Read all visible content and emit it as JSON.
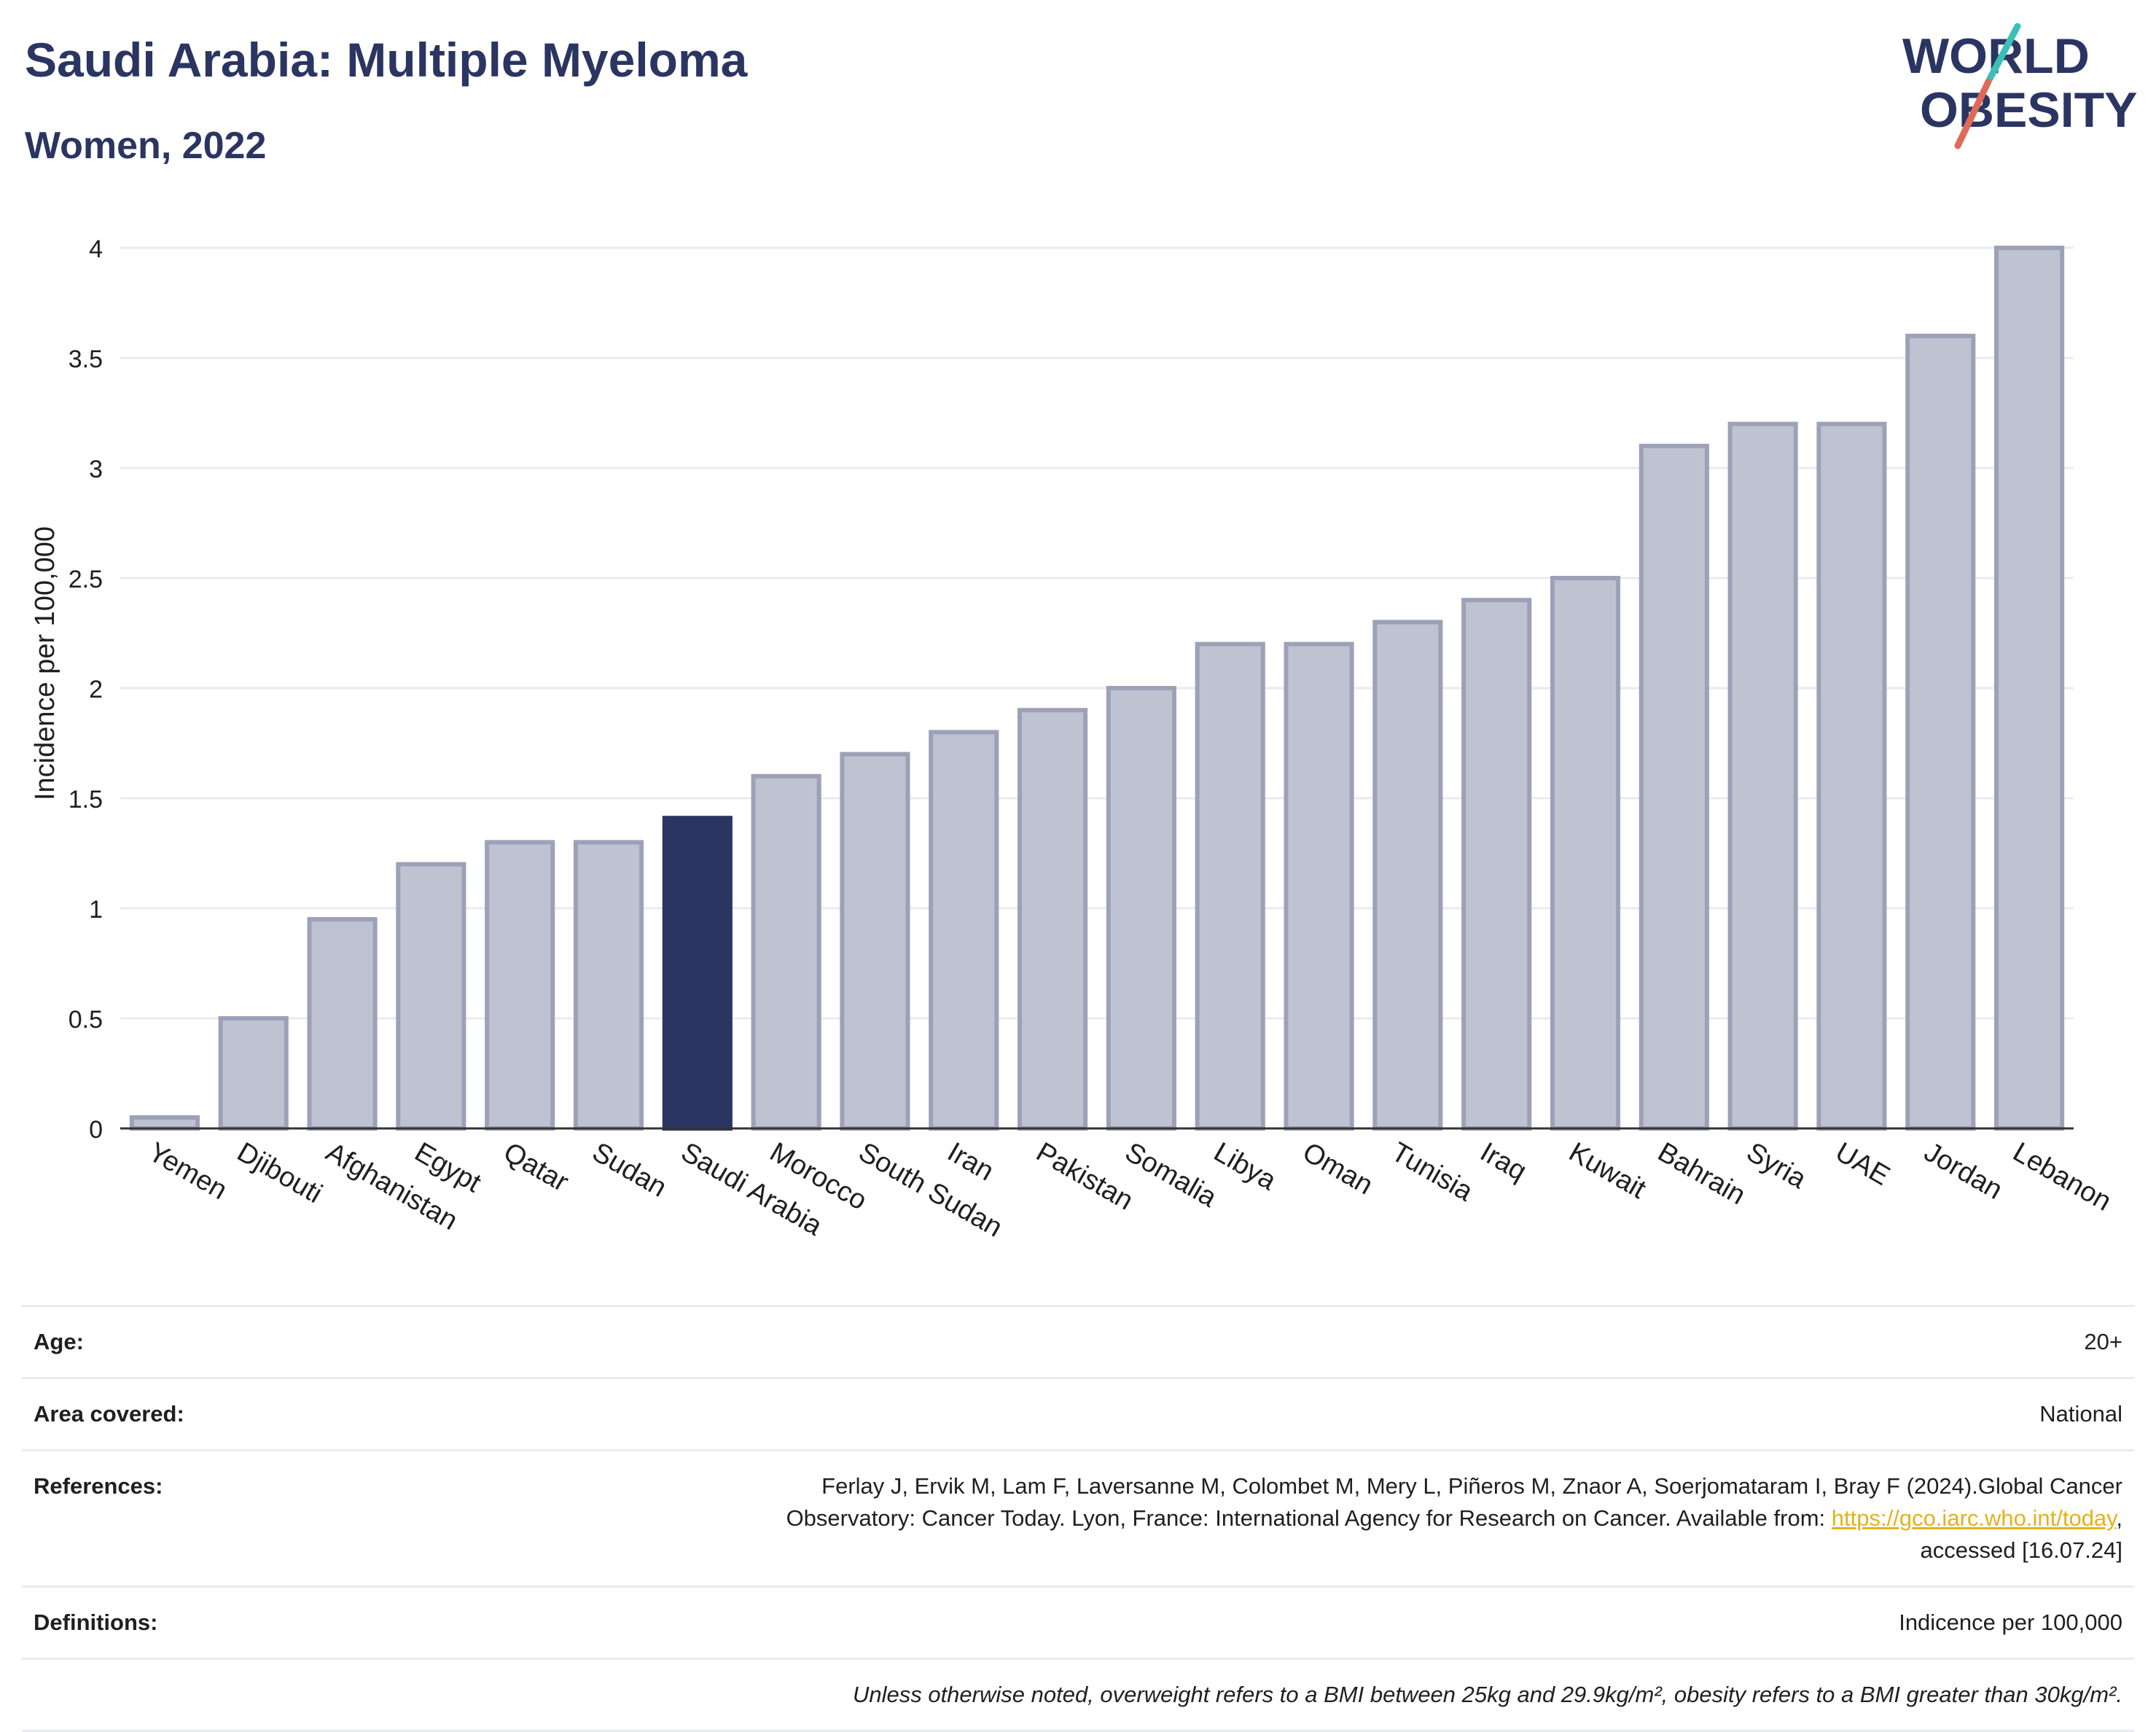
{
  "header": {
    "title": "Saudi Arabia: Multiple Myeloma",
    "subtitle": "Women, 2022",
    "logo_line1": "WORLD",
    "logo_line2": "OBESITY"
  },
  "chart_data": {
    "type": "bar",
    "ylabel": "Incidence per 100,000",
    "xlabel": "",
    "ylim": [
      0,
      4
    ],
    "yticks": [
      0,
      0.5,
      1,
      1.5,
      2,
      2.5,
      3,
      3.5,
      4
    ],
    "ytick_labels": [
      "0",
      "0.5",
      "1",
      "1.5",
      "2",
      "2.5",
      "3",
      "3.5",
      "4"
    ],
    "grid": true,
    "highlight": "Saudi Arabia",
    "categories": [
      "Yemen",
      "Djibouti",
      "Afghanistan",
      "Egypt",
      "Qatar",
      "Sudan",
      "Saudi Arabia",
      "Morocco",
      "South Sudan",
      "Iran",
      "Pakistan",
      "Somalia",
      "Libya",
      "Oman",
      "Tunisia",
      "Iraq",
      "Kuwait",
      "Bahrain",
      "Syria",
      "UAE",
      "Jordan",
      "Lebanon"
    ],
    "values": [
      0.05,
      0.5,
      0.95,
      1.2,
      1.3,
      1.3,
      1.41,
      1.6,
      1.7,
      1.8,
      1.9,
      2.0,
      2.2,
      2.2,
      2.3,
      2.4,
      2.5,
      3.1,
      3.2,
      3.2,
      3.6,
      4.0
    ],
    "colors": {
      "bar": "#bfc2d0",
      "bar_edge": "#9da1b8",
      "highlight": "#2b3562",
      "grid": "#e9ebf0",
      "axis": "#333333"
    }
  },
  "info": {
    "age_label": "Age:",
    "age_value": "20+",
    "area_label": "Area covered:",
    "area_value": "National",
    "ref_label": "References:",
    "ref_text_1": "Ferlay J, Ervik M, Lam F, Laversanne M, Colombet M, Mery L, Piñeros M, Znaor A, Soerjomataram I, Bray F (2024).Global Cancer",
    "ref_text_2": "Observatory: Cancer Today. Lyon, France: International Agency for Research on Cancer. Available from: ",
    "ref_link": "https://gco.iarc.who.int/today",
    "ref_text_3": "accessed [16.07.24]",
    "def_label": "Definitions:",
    "def_value": "Indicence per 100,000",
    "note": "Unless otherwise noted, overweight refers to a BMI between 25kg and 29.9kg/m², obesity refers to a BMI greater than 30kg/m²."
  }
}
